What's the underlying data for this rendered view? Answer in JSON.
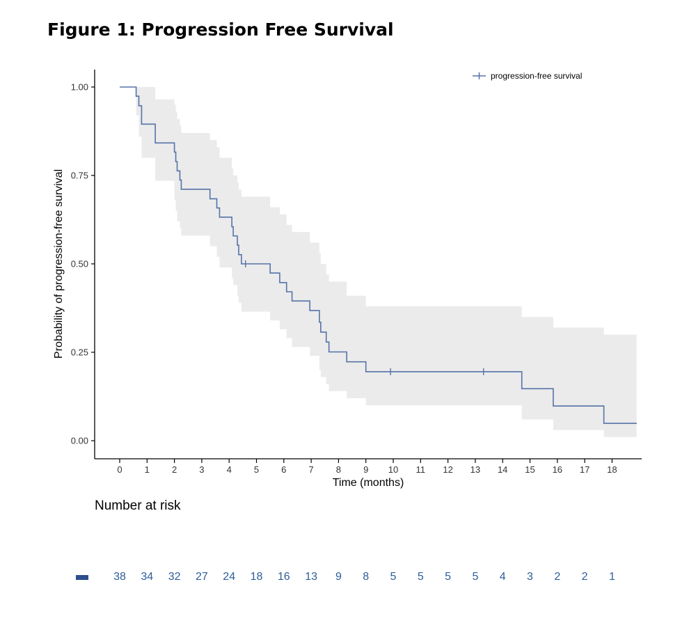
{
  "figure_title": "Figure 1: Progression Free Survival",
  "chart_data": {
    "type": "line",
    "subtype": "kaplan-meier step curve with confidence band",
    "xlabel": "Time (months)",
    "ylabel": "Probability of progression-free survival",
    "xlim": [
      -0.9,
      18.9
    ],
    "ylim": [
      -0.05,
      1.05
    ],
    "x_ticks": [
      0,
      1,
      2,
      3,
      4,
      5,
      6,
      7,
      8,
      9,
      10,
      11,
      12,
      13,
      14,
      15,
      16,
      17,
      18
    ],
    "y_ticks": [
      0.0,
      0.25,
      0.5,
      0.75,
      1.0
    ],
    "y_tick_labels": [
      "0.00",
      "0.25",
      "0.50",
      "0.75",
      "1.00"
    ],
    "grid": false,
    "legend_position": "top-right",
    "colors": {
      "line": "#5572a8",
      "band": "#ebebeb",
      "risk": "#2d5d99"
    },
    "series": [
      {
        "name": "progression-free survival",
        "steps": [
          [
            0,
            1.0
          ],
          [
            0.6,
            0.974
          ],
          [
            0.7,
            0.947
          ],
          [
            0.8,
            0.921
          ],
          [
            0.8,
            0.895
          ],
          [
            1.3,
            0.868
          ],
          [
            1.3,
            0.842
          ],
          [
            2.0,
            0.816
          ],
          [
            2.05,
            0.789
          ],
          [
            2.1,
            0.763
          ],
          [
            2.2,
            0.737
          ],
          [
            2.25,
            0.711
          ],
          [
            3.3,
            0.684
          ],
          [
            3.55,
            0.658
          ],
          [
            3.65,
            0.632
          ],
          [
            4.1,
            0.605
          ],
          [
            4.15,
            0.579
          ],
          [
            4.3,
            0.553
          ],
          [
            4.35,
            0.526
          ],
          [
            4.45,
            0.5
          ],
          [
            5.5,
            0.474
          ],
          [
            5.85,
            0.447
          ],
          [
            6.1,
            0.421
          ],
          [
            6.3,
            0.395
          ],
          [
            6.95,
            0.368
          ],
          [
            7.3,
            0.335
          ],
          [
            7.35,
            0.307
          ],
          [
            7.55,
            0.279
          ],
          [
            7.65,
            0.251
          ],
          [
            8.3,
            0.223
          ],
          [
            9.0,
            0.195
          ],
          [
            14.7,
            0.147
          ],
          [
            15.85,
            0.098
          ],
          [
            17.7,
            0.049
          ]
        ],
        "end_x": 18.9,
        "censored": [
          {
            "x": 4.6,
            "y": 0.5
          },
          {
            "x": 9.9,
            "y": 0.195
          },
          {
            "x": 13.3,
            "y": 0.195
          }
        ],
        "ci_band": [
          {
            "x": 0,
            "lower": 1.0,
            "upper": 1.0
          },
          {
            "x": 0.6,
            "lower": 0.92,
            "upper": 1.0
          },
          {
            "x": 0.7,
            "lower": 0.86,
            "upper": 1.0
          },
          {
            "x": 0.8,
            "lower": 0.8,
            "upper": 1.0
          },
          {
            "x": 1.3,
            "lower": 0.735,
            "upper": 0.965
          },
          {
            "x": 2.0,
            "lower": 0.68,
            "upper": 0.95
          },
          {
            "x": 2.05,
            "lower": 0.65,
            "upper": 0.93
          },
          {
            "x": 2.1,
            "lower": 0.62,
            "upper": 0.91
          },
          {
            "x": 2.2,
            "lower": 0.6,
            "upper": 0.89
          },
          {
            "x": 2.25,
            "lower": 0.58,
            "upper": 0.87
          },
          {
            "x": 3.3,
            "lower": 0.55,
            "upper": 0.85
          },
          {
            "x": 3.55,
            "lower": 0.52,
            "upper": 0.83
          },
          {
            "x": 3.65,
            "lower": 0.49,
            "upper": 0.8
          },
          {
            "x": 4.1,
            "lower": 0.46,
            "upper": 0.77
          },
          {
            "x": 4.15,
            "lower": 0.44,
            "upper": 0.75
          },
          {
            "x": 4.3,
            "lower": 0.41,
            "upper": 0.73
          },
          {
            "x": 4.35,
            "lower": 0.39,
            "upper": 0.71
          },
          {
            "x": 4.45,
            "lower": 0.365,
            "upper": 0.69
          },
          {
            "x": 5.5,
            "lower": 0.34,
            "upper": 0.66
          },
          {
            "x": 5.85,
            "lower": 0.315,
            "upper": 0.64
          },
          {
            "x": 6.1,
            "lower": 0.29,
            "upper": 0.61
          },
          {
            "x": 6.3,
            "lower": 0.265,
            "upper": 0.59
          },
          {
            "x": 6.95,
            "lower": 0.24,
            "upper": 0.56
          },
          {
            "x": 7.3,
            "lower": 0.2,
            "upper": 0.53
          },
          {
            "x": 7.35,
            "lower": 0.18,
            "upper": 0.5
          },
          {
            "x": 7.55,
            "lower": 0.16,
            "upper": 0.47
          },
          {
            "x": 7.65,
            "lower": 0.14,
            "upper": 0.45
          },
          {
            "x": 8.3,
            "lower": 0.12,
            "upper": 0.41
          },
          {
            "x": 9.0,
            "lower": 0.1,
            "upper": 0.38
          },
          {
            "x": 14.7,
            "lower": 0.06,
            "upper": 0.35
          },
          {
            "x": 15.85,
            "lower": 0.03,
            "upper": 0.32
          },
          {
            "x": 17.7,
            "lower": 0.01,
            "upper": 0.3
          }
        ]
      }
    ]
  },
  "risk_table": {
    "title": "Number at risk",
    "times": [
      0,
      1,
      2,
      3,
      4,
      5,
      6,
      7,
      8,
      9,
      10,
      11,
      12,
      13,
      14,
      15,
      16,
      17,
      18
    ],
    "values": [
      "38",
      "34",
      "32",
      "27",
      "24",
      "18",
      "16",
      "13",
      "9",
      "8",
      "5",
      "5",
      "5",
      "5",
      "4",
      "3",
      "2",
      "2",
      "1"
    ]
  }
}
